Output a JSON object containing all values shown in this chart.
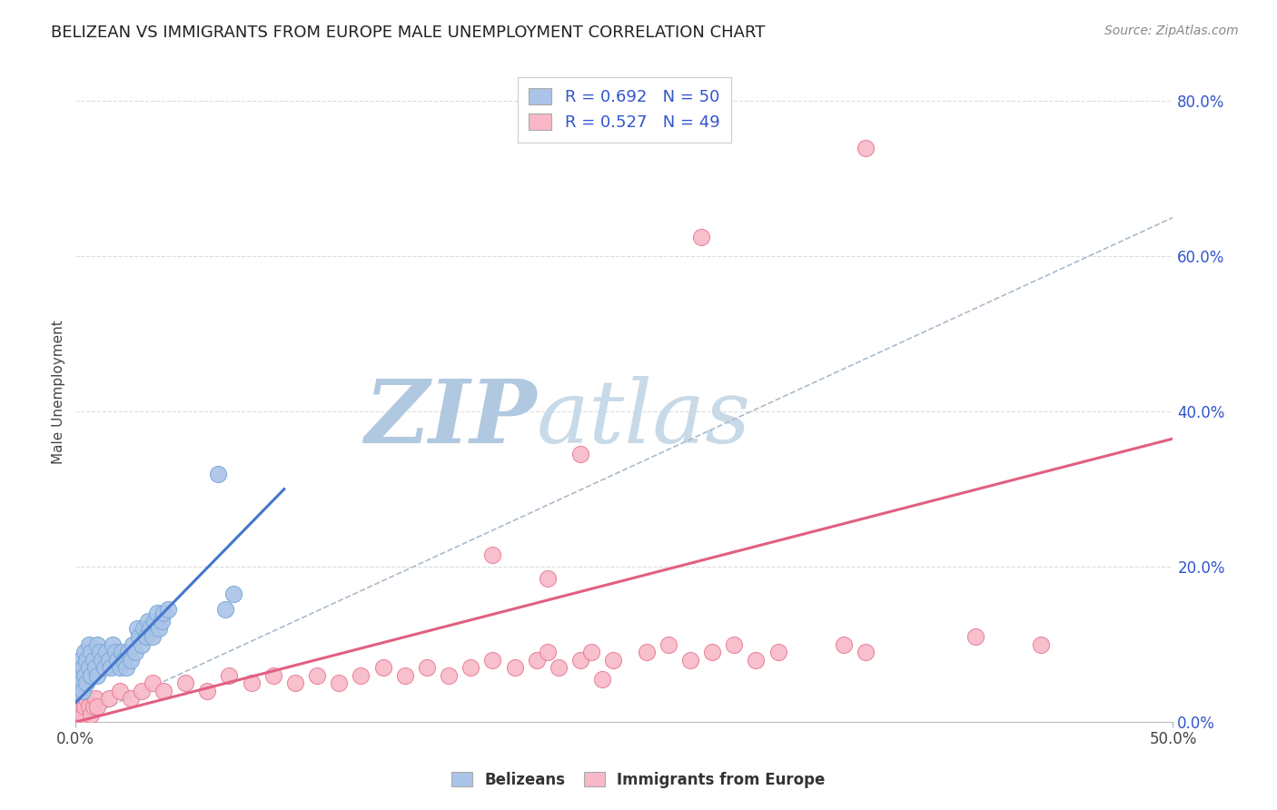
{
  "title": "BELIZEAN VS IMMIGRANTS FROM EUROPE MALE UNEMPLOYMENT CORRELATION CHART",
  "source": "Source: ZipAtlas.com",
  "ylabel": "Male Unemployment",
  "xlim": [
    0.0,
    0.5
  ],
  "ylim": [
    0.0,
    0.85
  ],
  "xticks": [
    0.0,
    0.5
  ],
  "xtick_labels": [
    "0.0%",
    "50.0%"
  ],
  "yticks_right": [
    0.0,
    0.2,
    0.4,
    0.6,
    0.8
  ],
  "ytick_labels_right": [
    "0.0%",
    "20.0%",
    "40.0%",
    "60.0%",
    "80.0%"
  ],
  "background_color": "#ffffff",
  "grid_color": "#dddddd",
  "title_color": "#222222",
  "title_fontsize": 13,
  "watermark_zip": "ZIP",
  "watermark_atlas": "atlas",
  "watermark_color_zip": "#b8cce0",
  "watermark_color_atlas": "#c8d8e8",
  "series": [
    {
      "name": "Belizeans",
      "color": "#aac4e8",
      "edge_color": "#7aaad8",
      "R": 0.692,
      "N": 50,
      "line_color": "#4477cc",
      "trend_x": [
        0.0,
        0.095
      ],
      "trend_y": [
        0.025,
        0.3
      ],
      "points_x": [
        0.001,
        0.001,
        0.002,
        0.002,
        0.003,
        0.003,
        0.004,
        0.004,
        0.005,
        0.005,
        0.006,
        0.006,
        0.007,
        0.007,
        0.008,
        0.009,
        0.01,
        0.01,
        0.011,
        0.012,
        0.013,
        0.014,
        0.015,
        0.016,
        0.017,
        0.018,
        0.019,
        0.02,
        0.021,
        0.022,
        0.023,
        0.024,
        0.025,
        0.026,
        0.027,
        0.028,
        0.029,
        0.03,
        0.031,
        0.032,
        0.033,
        0.034,
        0.035,
        0.036,
        0.037,
        0.038,
        0.039,
        0.04,
        0.042,
        0.065
      ],
      "points_y": [
        0.04,
        0.06,
        0.05,
        0.08,
        0.04,
        0.07,
        0.06,
        0.09,
        0.05,
        0.08,
        0.07,
        0.1,
        0.06,
        0.09,
        0.08,
        0.07,
        0.06,
        0.1,
        0.09,
        0.08,
        0.07,
        0.09,
        0.08,
        0.07,
        0.1,
        0.09,
        0.08,
        0.07,
        0.09,
        0.08,
        0.07,
        0.09,
        0.08,
        0.1,
        0.09,
        0.12,
        0.11,
        0.1,
        0.12,
        0.11,
        0.13,
        0.12,
        0.11,
        0.13,
        0.14,
        0.12,
        0.13,
        0.14,
        0.145,
        0.32
      ],
      "extra_points_x": [
        0.068,
        0.072
      ],
      "extra_points_y": [
        0.145,
        0.165
      ]
    },
    {
      "name": "Immigrants from Europe",
      "color": "#f8b8c8",
      "edge_color": "#e88098",
      "R": 0.527,
      "N": 49,
      "line_color": "#e06080",
      "trend_x": [
        0.0,
        0.5
      ],
      "trend_y": [
        0.0,
        0.365
      ],
      "points_x": [
        0.001,
        0.002,
        0.003,
        0.004,
        0.005,
        0.006,
        0.007,
        0.008,
        0.009,
        0.01,
        0.015,
        0.02,
        0.025,
        0.03,
        0.035,
        0.04,
        0.05,
        0.06,
        0.07,
        0.08,
        0.09,
        0.1,
        0.11,
        0.12,
        0.13,
        0.14,
        0.15,
        0.16,
        0.17,
        0.18,
        0.19,
        0.2,
        0.21,
        0.215,
        0.22,
        0.23,
        0.235,
        0.245,
        0.26,
        0.27,
        0.28,
        0.29,
        0.3,
        0.31,
        0.32,
        0.35,
        0.36,
        0.41,
        0.44
      ],
      "points_y": [
        0.01,
        0.02,
        0.01,
        0.02,
        0.03,
        0.02,
        0.01,
        0.02,
        0.03,
        0.02,
        0.03,
        0.04,
        0.03,
        0.04,
        0.05,
        0.04,
        0.05,
        0.04,
        0.06,
        0.05,
        0.06,
        0.05,
        0.06,
        0.05,
        0.06,
        0.07,
        0.06,
        0.07,
        0.06,
        0.07,
        0.08,
        0.07,
        0.08,
        0.09,
        0.07,
        0.08,
        0.09,
        0.08,
        0.09,
        0.1,
        0.08,
        0.09,
        0.1,
        0.08,
        0.09,
        0.1,
        0.09,
        0.11,
        0.1
      ],
      "outliers_x": [
        0.36,
        0.285,
        0.23,
        0.19,
        0.215,
        0.24
      ],
      "outliers_y": [
        0.74,
        0.625,
        0.345,
        0.215,
        0.185,
        0.055
      ]
    }
  ],
  "dashed_line_color": "#aabbcc",
  "dashed_line_x": [
    0.0,
    0.5
  ],
  "dashed_line_y": [
    0.0,
    0.65
  ],
  "legend_text_color": "#3355cc",
  "legend_fontsize": 13
}
